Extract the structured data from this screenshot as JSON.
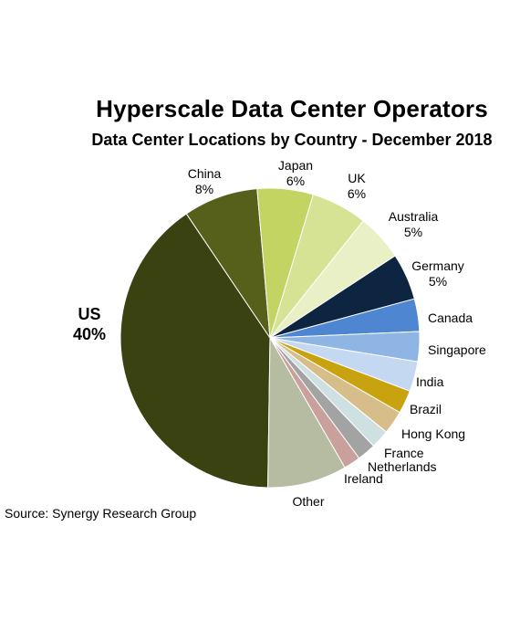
{
  "chart_data": {
    "type": "pie",
    "title": "Hyperscale Data Center Operators",
    "subtitle": "Data Center Locations by Country - December 2018",
    "source": "Source: Synergy Research Group",
    "slices": [
      {
        "label": "US",
        "value": 40,
        "value_label": "40%",
        "color": "#3a4212"
      },
      {
        "label": "China",
        "value": 8,
        "value_label": "8%",
        "color": "#56601a"
      },
      {
        "label": "Japan",
        "value": 6,
        "value_label": "6%",
        "color": "#c3d463"
      },
      {
        "label": "UK",
        "value": 6,
        "value_label": "6%",
        "color": "#d6e394"
      },
      {
        "label": "Australia",
        "value": 5,
        "value_label": "5%",
        "color": "#e9f0c6"
      },
      {
        "label": "Germany",
        "value": 5,
        "value_label": "5%",
        "color": "#0e2541"
      },
      {
        "label": "Canada",
        "value": 3.5,
        "value_label": "",
        "color": "#4f86d2"
      },
      {
        "label": "Singapore",
        "value": 3.2,
        "value_label": "",
        "color": "#8fb5e4"
      },
      {
        "label": "India",
        "value": 3.2,
        "value_label": "",
        "color": "#c5d8f1"
      },
      {
        "label": "Brazil",
        "value": 2.5,
        "value_label": "",
        "color": "#c9a30f"
      },
      {
        "label": "Hong Kong",
        "value": 2.5,
        "value_label": "",
        "color": "#d6bd8a"
      },
      {
        "label": "France",
        "value": 2,
        "value_label": "",
        "color": "#cfe0e3"
      },
      {
        "label": "Netherlands",
        "value": 2,
        "value_label": "",
        "color": "#a3a3a3"
      },
      {
        "label": "Ireland",
        "value": 1.8,
        "value_label": "",
        "color": "#c9a09b"
      },
      {
        "label": "Other",
        "value": 8.5,
        "value_label": "",
        "color": "#b6bca1"
      }
    ]
  }
}
